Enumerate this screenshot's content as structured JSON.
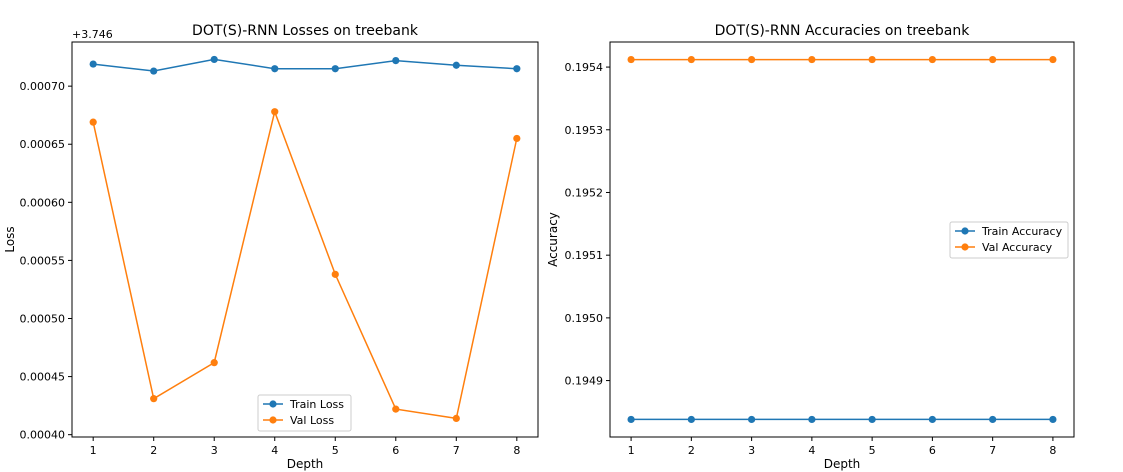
{
  "chart_data": [
    {
      "type": "line",
      "title": "DOT(S)-RNN Losses on treebank",
      "xlabel": "Depth",
      "ylabel": "Loss",
      "offset_label": "+3.746",
      "x": [
        1,
        2,
        3,
        4,
        5,
        6,
        7,
        8
      ],
      "xlim": [
        0.65,
        8.35
      ],
      "ylim": [
        0.000398,
        0.000738
      ],
      "yticks": [
        "0.00040",
        "0.00045",
        "0.00050",
        "0.00055",
        "0.00060",
        "0.00065",
        "0.00070"
      ],
      "ytick_values": [
        0.0004,
        0.00045,
        0.0005,
        0.00055,
        0.0006,
        0.00065,
        0.0007
      ],
      "legend_position": "lower center",
      "series": [
        {
          "name": "Train Loss",
          "color": "#1f77b4",
          "values": [
            0.000719,
            0.000713,
            0.000723,
            0.000715,
            0.000715,
            0.000722,
            0.000718,
            0.000715
          ]
        },
        {
          "name": "Val Loss",
          "color": "#ff7f0e",
          "values": [
            0.000669,
            0.000431,
            0.000462,
            0.000678,
            0.000538,
            0.000422,
            0.000414,
            0.000655
          ]
        }
      ]
    },
    {
      "type": "line",
      "title": "DOT(S)-RNN Accuracies on treebank",
      "xlabel": "Depth",
      "ylabel": "Accuracy",
      "x": [
        1,
        2,
        3,
        4,
        5,
        6,
        7,
        8
      ],
      "xlim": [
        0.65,
        8.35
      ],
      "ylim": [
        0.19481,
        0.19544
      ],
      "yticks": [
        "0.1949",
        "0.1950",
        "0.1951",
        "0.1952",
        "0.1953",
        "0.1954"
      ],
      "ytick_values": [
        0.1949,
        0.195,
        0.1951,
        0.1952,
        0.1953,
        0.1954
      ],
      "legend_position": "center right",
      "series": [
        {
          "name": "Train Accuracy",
          "color": "#1f77b4",
          "values": [
            0.194838,
            0.194838,
            0.194838,
            0.194838,
            0.194838,
            0.194838,
            0.194838,
            0.194838
          ]
        },
        {
          "name": "Val Accuracy",
          "color": "#ff7f0e",
          "values": [
            0.195412,
            0.195412,
            0.195412,
            0.195412,
            0.195412,
            0.195412,
            0.195412,
            0.195412
          ]
        }
      ]
    }
  ]
}
